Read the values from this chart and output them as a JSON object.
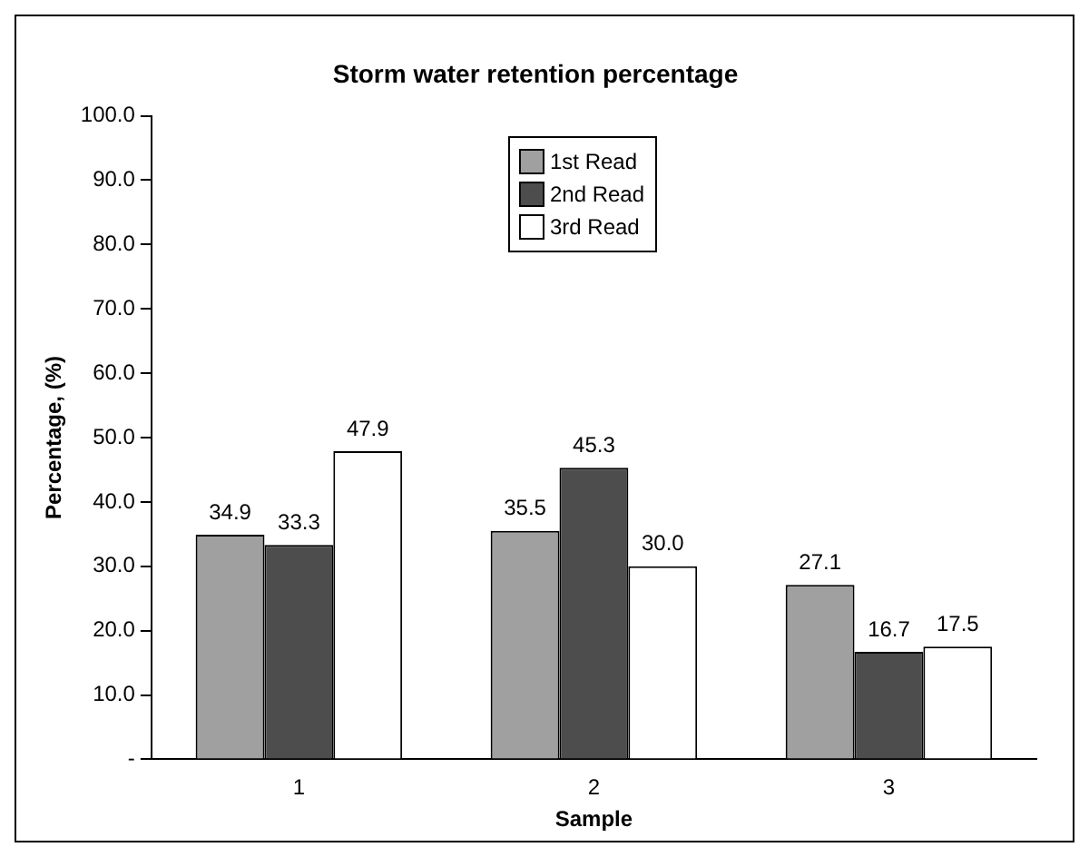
{
  "chart_data": {
    "type": "bar",
    "title": "Storm water retention percentage",
    "xlabel": "Sample",
    "ylabel": "Percentage, (%)",
    "categories": [
      "1",
      "2",
      "3"
    ],
    "series": [
      {
        "name": "1st Read",
        "color": "#a0a0a0",
        "values": [
          34.9,
          35.5,
          27.1
        ],
        "value_labels": [
          "34.9",
          "35.5",
          "27.1"
        ]
      },
      {
        "name": "2nd Read",
        "color": "#4d4d4d",
        "values": [
          33.3,
          45.3,
          16.7
        ],
        "value_labels": [
          "33.3",
          "45.3",
          "16.7"
        ]
      },
      {
        "name": "3rd Read",
        "color": "#ffffff",
        "values": [
          47.9,
          30.0,
          17.5
        ],
        "value_labels": [
          "47.9",
          "30.0",
          "17.5"
        ]
      }
    ],
    "ylim": [
      0,
      100
    ],
    "yticks": [
      {
        "value": 0,
        "label": "-"
      },
      {
        "value": 10,
        "label": "10.0"
      },
      {
        "value": 20,
        "label": "20.0"
      },
      {
        "value": 30,
        "label": "30.0"
      },
      {
        "value": 40,
        "label": "40.0"
      },
      {
        "value": 50,
        "label": "50.0"
      },
      {
        "value": 60,
        "label": "60.0"
      },
      {
        "value": 70,
        "label": "70.0"
      },
      {
        "value": 80,
        "label": "80.0"
      },
      {
        "value": 90,
        "label": "90.0"
      },
      {
        "value": 100,
        "label": "100.0"
      }
    ],
    "grid": false,
    "legend": "top"
  }
}
